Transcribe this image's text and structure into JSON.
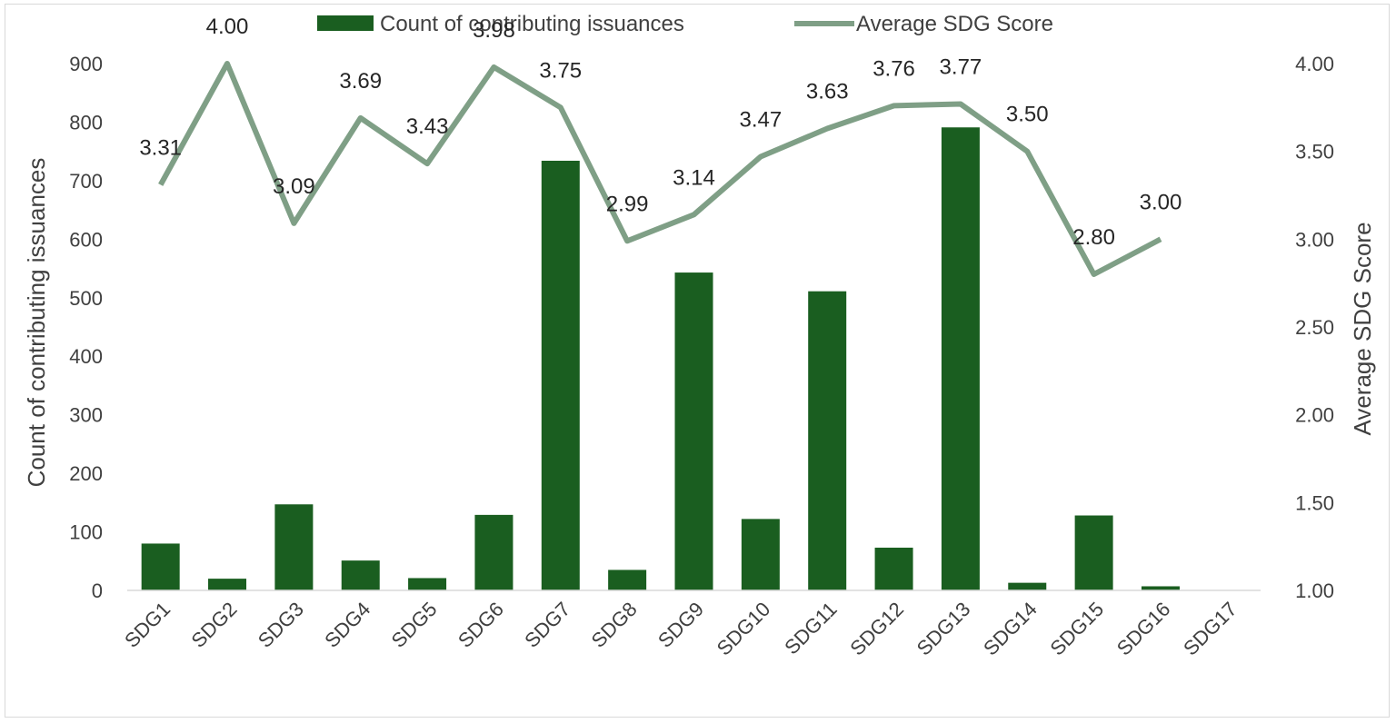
{
  "chart_data": {
    "type": "bar+line",
    "categories": [
      "SDG1",
      "SDG2",
      "SDG3",
      "SDG4",
      "SDG5",
      "SDG6",
      "SDG7",
      "SDG8",
      "SDG9",
      "SDG10",
      "SDG11",
      "SDG12",
      "SDG13",
      "SDG14",
      "SDG15",
      "SDG16",
      "SDG17"
    ],
    "series": [
      {
        "name": "Count of contributing issuances",
        "type": "bar",
        "axis": "left",
        "color": "#1a5e20",
        "values": [
          80,
          20,
          147,
          51,
          21,
          129,
          734,
          35,
          543,
          122,
          511,
          73,
          791,
          13,
          128,
          7,
          0
        ]
      },
      {
        "name": "Average SDG Score",
        "type": "line",
        "axis": "right",
        "color": "#7f9f86",
        "values": [
          3.31,
          4.0,
          3.09,
          3.69,
          3.43,
          3.98,
          3.75,
          2.99,
          3.14,
          3.47,
          3.63,
          3.76,
          3.77,
          3.5,
          2.8,
          3.0,
          null
        ],
        "labels": [
          "3.31",
          "4.00",
          "3.09",
          "3.69",
          "3.43",
          "3.98",
          "3.75",
          "2.99",
          "3.14",
          "3.47",
          "3.63",
          "3.76",
          "3.77",
          "3.50",
          "2.80",
          "3.00",
          ""
        ]
      }
    ],
    "ylabel_left": "Count of contributing issuances",
    "ylabel_right": "Average SDG Score",
    "ylim_left": [
      0,
      900
    ],
    "ylim_right": [
      1.0,
      4.0
    ],
    "yticks_left": [
      "0",
      "100",
      "200",
      "300",
      "400",
      "500",
      "600",
      "700",
      "800",
      "900"
    ],
    "yticks_right": [
      "1.00",
      "1.50",
      "2.00",
      "2.50",
      "3.00",
      "3.50",
      "4.00"
    ],
    "legend_position": "top-center",
    "grid": false
  }
}
